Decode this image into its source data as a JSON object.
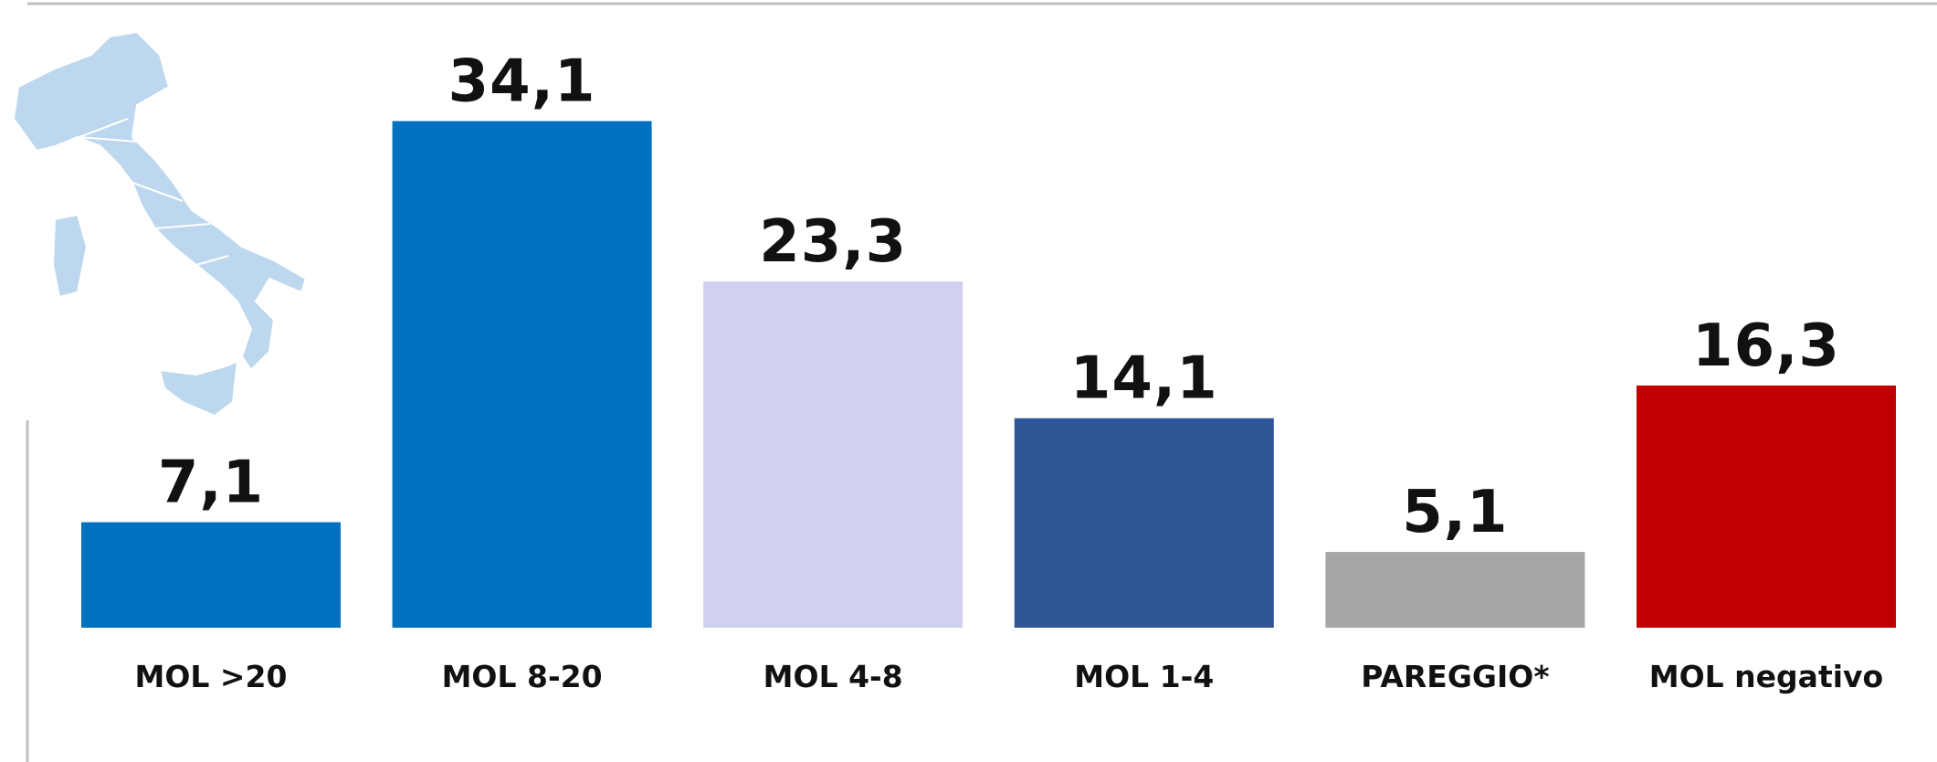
{
  "chart_data": {
    "type": "bar",
    "categories": [
      "MOL >20",
      "MOL 8-20",
      "MOL 4-8",
      "MOL 1-4",
      "PAREGGIO*",
      "MOL negativo"
    ],
    "values": [
      7.1,
      34.1,
      23.3,
      14.1,
      5.1,
      16.3
    ],
    "value_labels": [
      "7,1",
      "34,1",
      "23,3",
      "14,1",
      "5,1",
      "16,3"
    ],
    "colors": [
      "#0070c0",
      "#0070c0",
      "#d0d0f0",
      "#2f5597",
      "#a6a6a6",
      "#c00000"
    ]
  }
}
